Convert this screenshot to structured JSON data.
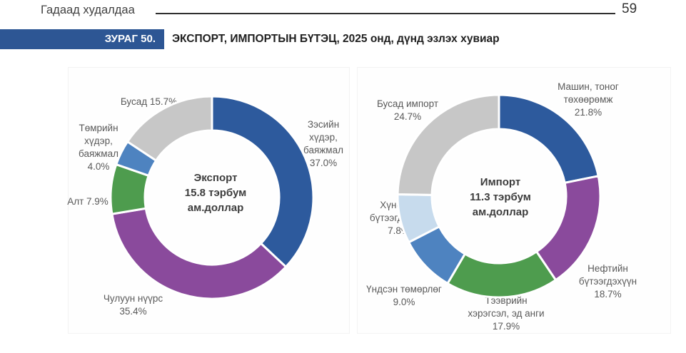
{
  "header": {
    "section_title": "Гадаад худалдаа",
    "page_number": "59"
  },
  "figure": {
    "tag": "ЗУРАГ 50.",
    "title": "ЭКСПОРТ, ИМПОРТЫН БҮТЭЦ, 2025 онд, дүнд эзлэх хувиар"
  },
  "colors": {
    "dark_blue": "#2d5a9d",
    "purple": "#8a4a9c",
    "green": "#4e9c4e",
    "steel_blue": "#4e83c0",
    "pale_blue": "#c7dbed",
    "gray": "#c7c7c7",
    "tag_background": "#2d5694",
    "label_text": "#595959"
  },
  "chart_data": [
    {
      "type": "pie",
      "variant": "donut",
      "title": "Экспорт",
      "total": "15.8 тэрбум ам.доллар",
      "center_label": "Экспорт\n15.8 тэрбум\nам.доллар",
      "unit": "percent",
      "start_angle_deg": 0,
      "direction": "clockwise",
      "slices": [
        {
          "name": "Зэсийн хүдэр, баяжмал",
          "value": 37.0,
          "color": "#2d5a9d",
          "label_display": "Зэсийн\nхүдэр,\nбаяжмал\n37.0%"
        },
        {
          "name": "Чулуун нүүрс",
          "value": 35.4,
          "color": "#8a4a9c",
          "label_display": "Чулуун нүүрс\n35.4%"
        },
        {
          "name": "Алт",
          "value": 7.9,
          "color": "#4e9c4e",
          "label_display": "Алт 7.9%"
        },
        {
          "name": "Төмрийн хүдэр, баяжмал",
          "value": 4.0,
          "color": "#4e83c0",
          "label_display": "Төмрийн\nхүдэр,\nбаяжмал\n4.0%"
        },
        {
          "name": "Бусад",
          "value": 15.7,
          "color": "#c7c7c7",
          "label_display": "Бусад 15.7%"
        }
      ]
    },
    {
      "type": "pie",
      "variant": "donut",
      "title": "Импорт",
      "total": "11.3 тэрбум ам.доллар",
      "center_label": "Импорт\n11.3 тэрбум\nам.доллар",
      "unit": "percent",
      "start_angle_deg": 0,
      "direction": "clockwise",
      "slices": [
        {
          "name": "Машин, тоног төхөөрөмж",
          "value": 21.8,
          "color": "#2d5a9d",
          "label_display": "Машин, тоног\nтөхөөрөмж\n21.8%"
        },
        {
          "name": "Нефтийн бүтээгдэхүүн",
          "value": 18.7,
          "color": "#8a4a9c",
          "label_display": "Нефтийн\nбүтээгдэхүүн\n18.7%"
        },
        {
          "name": "Тээврийн хэрэгсэл, эд анги",
          "value": 17.9,
          "color": "#4e9c4e",
          "label_display": "Тээврийн\nхэрэгсэл, эд анги\n17.9%"
        },
        {
          "name": "Үндсэн төмөрлөг",
          "value": 9.0,
          "color": "#4e83c0",
          "label_display": "Үндсэн төмөрлөг\n9.0%"
        },
        {
          "name": "Хүнсний бүтээгдэхүүн",
          "value": 7.8,
          "color": "#c7dbed",
          "label_display": "Хүнсний\nбүтээгдэхүүн\n7.8%"
        },
        {
          "name": "Бусад импорт",
          "value": 24.7,
          "color": "#c7c7c7",
          "label_display": "Бусад импорт\n24.7%"
        }
      ]
    }
  ]
}
